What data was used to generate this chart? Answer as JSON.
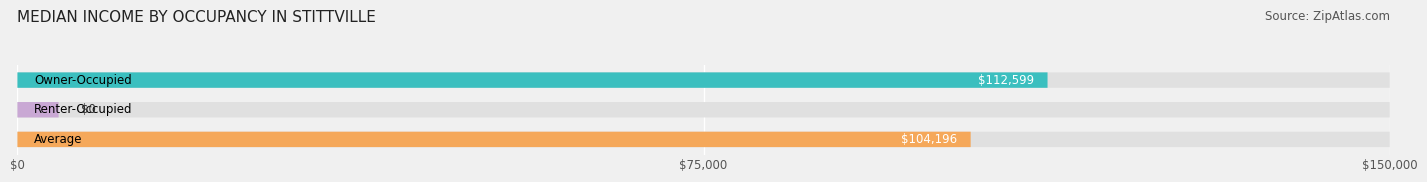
{
  "title": "MEDIAN INCOME BY OCCUPANCY IN STITTVILLE",
  "source": "Source: ZipAtlas.com",
  "categories": [
    "Owner-Occupied",
    "Renter-Occupied",
    "Average"
  ],
  "values": [
    112599,
    0,
    104196
  ],
  "bar_colors": [
    "#3bbfbf",
    "#c9a8d4",
    "#f5a85a"
  ],
  "bar_labels": [
    "$112,599",
    "$0",
    "$104,196"
  ],
  "xlim": [
    0,
    150000
  ],
  "xticks": [
    0,
    75000,
    150000
  ],
  "xtick_labels": [
    "$0",
    "$75,000",
    "$150,000"
  ],
  "background_color": "#f0f0f0",
  "bar_bg_color": "#e0e0e0",
  "title_fontsize": 11,
  "label_fontsize": 8.5,
  "value_fontsize": 8.5,
  "source_fontsize": 8.5
}
